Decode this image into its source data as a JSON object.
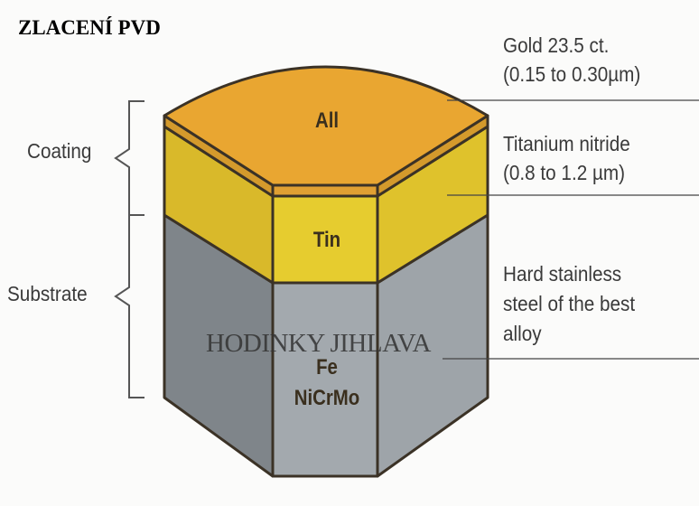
{
  "title": "ZLACENÍ PVD",
  "watermark": "HODINKY JIHLAVA",
  "layers": {
    "top_label": "All",
    "middle_label": "Tin",
    "bottom_label_1": "Fe",
    "bottom_label_2": "NiCrMo"
  },
  "brackets": {
    "coating": "Coating",
    "substrate": "Substrate"
  },
  "annotations": {
    "gold_1": "Gold 23.5 ct.",
    "gold_2": "(0.15 to 0.30µm)",
    "tin_1": "Titanium nitride",
    "tin_2": "(0.8 to 1.2 µm)",
    "steel_1": "Hard stainless",
    "steel_2": "steel of the best",
    "steel_3": "alloy"
  },
  "colors": {
    "gold": "#e8a12e",
    "tin": "#e4c52e",
    "steel": "#9aa0a6"
  }
}
